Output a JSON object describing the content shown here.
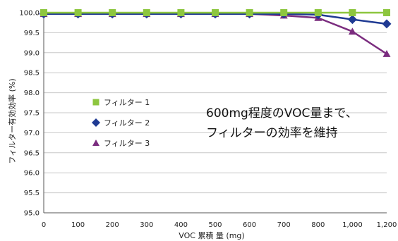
{
  "chart_data": {
    "type": "line",
    "title": "",
    "xlabel": "VOC 累積 量 (mg)",
    "ylabel": "フィルター有効効率 (%)",
    "x": [
      0,
      100,
      200,
      300,
      400,
      500,
      600,
      700,
      800,
      1000,
      1200
    ],
    "x_tick_labels": [
      "0",
      "100",
      "200",
      "300",
      "400",
      "500",
      "600",
      "700",
      "800",
      "1,000",
      "1,200"
    ],
    "y_ticks": [
      "95.0",
      "95.5",
      "96.0",
      "96.5",
      "97.0",
      "97.5",
      "98.0",
      "98.5",
      "99.0",
      "99.5",
      "100.0"
    ],
    "ylim": [
      95.0,
      100.0
    ],
    "grid": "horizontal",
    "legend_position": "middle-left",
    "series": [
      {
        "name": "フィルター 1",
        "color": "#8dc63f",
        "marker": "square",
        "values": [
          100.0,
          100.0,
          100.0,
          100.0,
          100.0,
          100.0,
          100.0,
          100.0,
          100.0,
          100.0,
          100.0
        ]
      },
      {
        "name": "フィルター 2",
        "color": "#1f3a93",
        "marker": "diamond",
        "values": [
          99.97,
          99.97,
          99.97,
          99.97,
          99.97,
          99.97,
          99.97,
          99.97,
          99.95,
          99.83,
          99.72
        ]
      },
      {
        "name": "フィルター 3",
        "color": "#7b2d7f",
        "marker": "triangle",
        "values": [
          99.97,
          99.97,
          99.97,
          99.97,
          99.97,
          99.97,
          99.97,
          99.93,
          99.87,
          99.53,
          98.97
        ]
      }
    ],
    "annotation": [
      "600mg程度のVOC量まで、",
      "フィルターの効率を維持"
    ]
  }
}
